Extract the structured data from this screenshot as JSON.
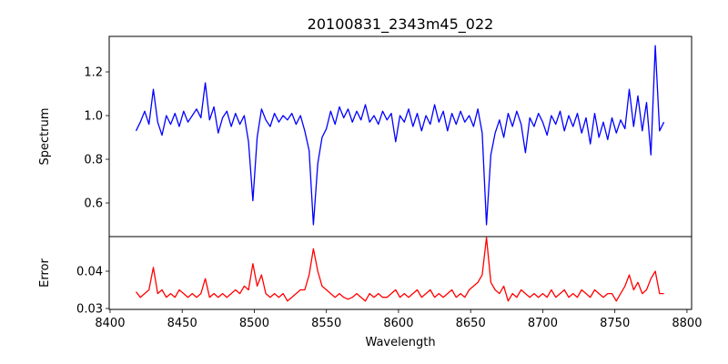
{
  "chart_data": [
    {
      "type": "line",
      "title": "20100831_2343m45_022",
      "xlabel": "",
      "ylabel": "Spectrum",
      "xlim": [
        8399.4,
        8803.2
      ],
      "ylim": [
        0.446,
        1.3625
      ],
      "yticks": [
        "0.6",
        "0.8",
        "1.0",
        "1.2"
      ],
      "color": "#0000ff",
      "x_start": 8418,
      "x_step": 3,
      "values": [
        0.93,
        0.97,
        1.02,
        0.96,
        1.12,
        0.97,
        0.91,
        1.0,
        0.96,
        1.01,
        0.95,
        1.02,
        0.97,
        1.0,
        1.03,
        0.99,
        1.15,
        0.98,
        1.04,
        0.92,
        0.99,
        1.02,
        0.95,
        1.01,
        0.96,
        1.0,
        0.88,
        0.61,
        0.9,
        1.03,
        0.98,
        0.95,
        1.01,
        0.97,
        1.0,
        0.98,
        1.01,
        0.96,
        1.0,
        0.93,
        0.84,
        0.5,
        0.78,
        0.9,
        0.94,
        1.02,
        0.96,
        1.04,
        0.99,
        1.03,
        0.97,
        1.02,
        0.98,
        1.05,
        0.97,
        1.0,
        0.96,
        1.02,
        0.98,
        1.01,
        0.88,
        1.0,
        0.97,
        1.03,
        0.95,
        1.01,
        0.93,
        1.0,
        0.96,
        1.05,
        0.97,
        1.02,
        0.93,
        1.01,
        0.96,
        1.02,
        0.97,
        1.0,
        0.95,
        1.03,
        0.92,
        0.5,
        0.82,
        0.92,
        0.98,
        0.9,
        1.01,
        0.95,
        1.02,
        0.96,
        0.83,
        0.99,
        0.95,
        1.01,
        0.97,
        0.91,
        1.0,
        0.96,
        1.02,
        0.93,
        1.0,
        0.95,
        1.01,
        0.92,
        0.99,
        0.87,
        1.01,
        0.9,
        0.97,
        0.89,
        0.99,
        0.92,
        0.98,
        0.94,
        1.12,
        0.95,
        1.09,
        0.93,
        1.06,
        0.82,
        1.32,
        0.93,
        0.97
      ]
    },
    {
      "type": "line",
      "title": "",
      "xlabel": "Wavelength",
      "ylabel": "Error",
      "xlim": [
        8399.4,
        8803.2
      ],
      "ylim": [
        0.02976,
        0.04927
      ],
      "xticks": [
        "8400",
        "8450",
        "8500",
        "8550",
        "8600",
        "8650",
        "8700",
        "8750",
        "8800"
      ],
      "yticks": [
        "0.03",
        "0.04"
      ],
      "color": "#ff0000",
      "x_start": 8418,
      "x_step": 3,
      "values": [
        0.0345,
        0.033,
        0.034,
        0.035,
        0.041,
        0.034,
        0.035,
        0.033,
        0.034,
        0.033,
        0.035,
        0.034,
        0.033,
        0.034,
        0.033,
        0.034,
        0.038,
        0.033,
        0.034,
        0.033,
        0.034,
        0.033,
        0.034,
        0.035,
        0.034,
        0.036,
        0.035,
        0.042,
        0.036,
        0.039,
        0.034,
        0.033,
        0.034,
        0.033,
        0.034,
        0.032,
        0.033,
        0.034,
        0.035,
        0.035,
        0.039,
        0.046,
        0.04,
        0.036,
        0.035,
        0.034,
        0.033,
        0.034,
        0.033,
        0.0325,
        0.033,
        0.034,
        0.033,
        0.032,
        0.034,
        0.033,
        0.034,
        0.033,
        0.033,
        0.034,
        0.035,
        0.033,
        0.034,
        0.033,
        0.034,
        0.035,
        0.033,
        0.034,
        0.035,
        0.033,
        0.034,
        0.033,
        0.034,
        0.035,
        0.033,
        0.034,
        0.033,
        0.035,
        0.036,
        0.037,
        0.039,
        0.049,
        0.037,
        0.035,
        0.034,
        0.036,
        0.032,
        0.034,
        0.033,
        0.035,
        0.034,
        0.033,
        0.034,
        0.033,
        0.034,
        0.033,
        0.035,
        0.033,
        0.034,
        0.035,
        0.033,
        0.034,
        0.033,
        0.035,
        0.034,
        0.033,
        0.035,
        0.034,
        0.033,
        0.034,
        0.034,
        0.032,
        0.034,
        0.036,
        0.039,
        0.035,
        0.037,
        0.034,
        0.035,
        0.038,
        0.04,
        0.034,
        0.034
      ]
    }
  ]
}
